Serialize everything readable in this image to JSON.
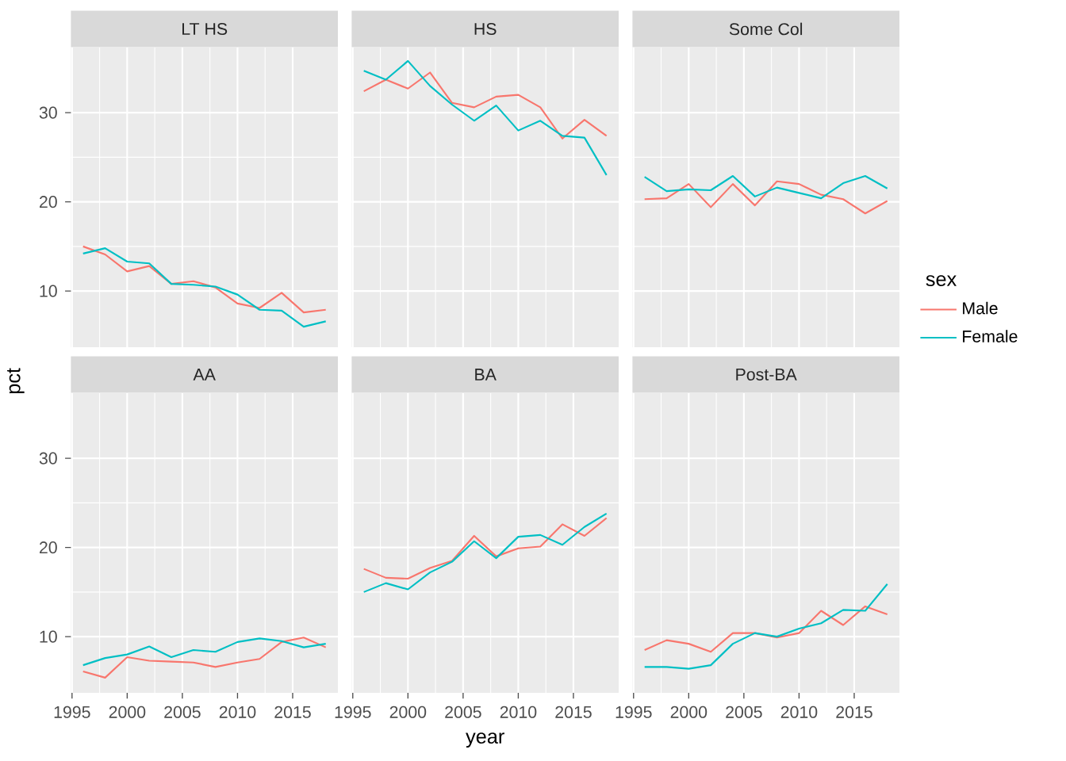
{
  "chart_data": [
    {
      "type": "line",
      "title": "LT HS",
      "x": [
        1996,
        1998,
        2000,
        2002,
        2004,
        2006,
        2008,
        2010,
        2012,
        2014,
        2016,
        2018
      ],
      "xlim": [
        1994.9,
        2019.1
      ],
      "ylim": [
        3.7,
        37.3
      ],
      "xticks": [
        1995,
        2000,
        2005,
        2010,
        2015
      ],
      "yticks": [
        10,
        20,
        30
      ],
      "grid": true,
      "tick_labels": "y",
      "series": [
        {
          "color": "#f8766d",
          "values": [
            15.0,
            14.1,
            12.2,
            12.8,
            10.8,
            11.1,
            10.4,
            8.6,
            8.1,
            9.8,
            7.6,
            7.9
          ]
        },
        {
          "color": "#00bfc4",
          "values": [
            14.2,
            14.8,
            13.3,
            13.1,
            10.8,
            10.7,
            10.5,
            9.6,
            7.9,
            7.8,
            6.0,
            6.6
          ]
        }
      ]
    },
    {
      "type": "line",
      "title": "HS",
      "x": [
        1996,
        1998,
        2000,
        2002,
        2004,
        2006,
        2008,
        2010,
        2012,
        2014,
        2016,
        2018
      ],
      "xlim": [
        1994.9,
        2019.1
      ],
      "ylim": [
        3.7,
        37.3
      ],
      "xticks": [
        1995,
        2000,
        2005,
        2010,
        2015
      ],
      "yticks": [
        10,
        20,
        30
      ],
      "grid": true,
      "tick_labels": false,
      "series": [
        {
          "color": "#f8766d",
          "values": [
            32.4,
            33.7,
            32.7,
            34.5,
            31.1,
            30.6,
            31.8,
            32.0,
            30.6,
            27.1,
            29.2,
            27.4
          ]
        },
        {
          "color": "#00bfc4",
          "values": [
            34.7,
            33.7,
            35.8,
            33.0,
            30.9,
            29.1,
            30.8,
            28.0,
            29.1,
            27.4,
            27.2,
            23.0
          ]
        }
      ]
    },
    {
      "type": "line",
      "title": "Some Col",
      "x": [
        1996,
        1998,
        2000,
        2002,
        2004,
        2006,
        2008,
        2010,
        2012,
        2014,
        2016,
        2018
      ],
      "xlim": [
        1994.9,
        2019.1
      ],
      "ylim": [
        3.7,
        37.3
      ],
      "xticks": [
        1995,
        2000,
        2005,
        2010,
        2015
      ],
      "yticks": [
        10,
        20,
        30
      ],
      "grid": true,
      "tick_labels": false,
      "legend": "right",
      "legend_title": "sex",
      "series": [
        {
          "name": "Male",
          "color": "#f8766d",
          "values": [
            20.3,
            20.4,
            22.0,
            19.4,
            22.0,
            19.6,
            22.3,
            22.0,
            20.8,
            20.3,
            18.7,
            20.1
          ]
        },
        {
          "name": "Female",
          "color": "#00bfc4",
          "values": [
            22.8,
            21.2,
            21.4,
            21.3,
            22.9,
            20.6,
            21.6,
            21.0,
            20.4,
            22.1,
            22.9,
            21.5
          ]
        }
      ]
    },
    {
      "type": "line",
      "title": "AA",
      "ylabel": "pct",
      "x": [
        1996,
        1998,
        2000,
        2002,
        2004,
        2006,
        2008,
        2010,
        2012,
        2014,
        2016,
        2018
      ],
      "xlim": [
        1994.9,
        2019.1
      ],
      "ylim": [
        3.7,
        37.3
      ],
      "xticks": [
        1995,
        2000,
        2005,
        2010,
        2015
      ],
      "yticks": [
        10,
        20,
        30
      ],
      "grid": true,
      "series": [
        {
          "color": "#f8766d",
          "values": [
            6.1,
            5.4,
            7.7,
            7.3,
            7.2,
            7.1,
            6.6,
            7.1,
            7.5,
            9.4,
            9.9,
            8.8
          ]
        },
        {
          "color": "#00bfc4",
          "values": [
            6.8,
            7.6,
            8.0,
            8.9,
            7.7,
            8.5,
            8.3,
            9.4,
            9.8,
            9.5,
            8.8,
            9.2
          ]
        }
      ]
    },
    {
      "type": "line",
      "title": "BA",
      "xlabel": "year",
      "x": [
        1996,
        1998,
        2000,
        2002,
        2004,
        2006,
        2008,
        2010,
        2012,
        2014,
        2016,
        2018
      ],
      "xlim": [
        1994.9,
        2019.1
      ],
      "ylim": [
        3.7,
        37.3
      ],
      "xticks": [
        1995,
        2000,
        2005,
        2010,
        2015
      ],
      "yticks": [
        10,
        20,
        30
      ],
      "grid": true,
      "tick_labels": "x",
      "series": [
        {
          "color": "#f8766d",
          "values": [
            17.6,
            16.6,
            16.5,
            17.7,
            18.5,
            21.3,
            19.0,
            19.9,
            20.1,
            22.6,
            21.3,
            23.3
          ]
        },
        {
          "color": "#00bfc4",
          "values": [
            15.0,
            16.0,
            15.3,
            17.2,
            18.4,
            20.7,
            18.8,
            21.2,
            21.4,
            20.3,
            22.3,
            23.8
          ]
        }
      ]
    },
    {
      "type": "line",
      "title": "Post-BA",
      "x": [
        1996,
        1998,
        2000,
        2002,
        2004,
        2006,
        2008,
        2010,
        2012,
        2014,
        2016,
        2018
      ],
      "xlim": [
        1994.9,
        2019.1
      ],
      "ylim": [
        3.7,
        37.3
      ],
      "xticks": [
        1995,
        2000,
        2005,
        2010,
        2015
      ],
      "yticks": [
        10,
        20,
        30
      ],
      "grid": true,
      "tick_labels": "x",
      "series": [
        {
          "color": "#f8766d",
          "values": [
            8.5,
            9.6,
            9.2,
            8.3,
            10.4,
            10.4,
            9.9,
            10.4,
            12.9,
            11.3,
            13.4,
            12.5
          ]
        },
        {
          "color": "#00bfc4",
          "values": [
            6.6,
            6.6,
            6.4,
            6.8,
            9.2,
            10.4,
            10.0,
            10.9,
            11.5,
            13.0,
            12.9,
            15.9
          ]
        }
      ]
    }
  ]
}
